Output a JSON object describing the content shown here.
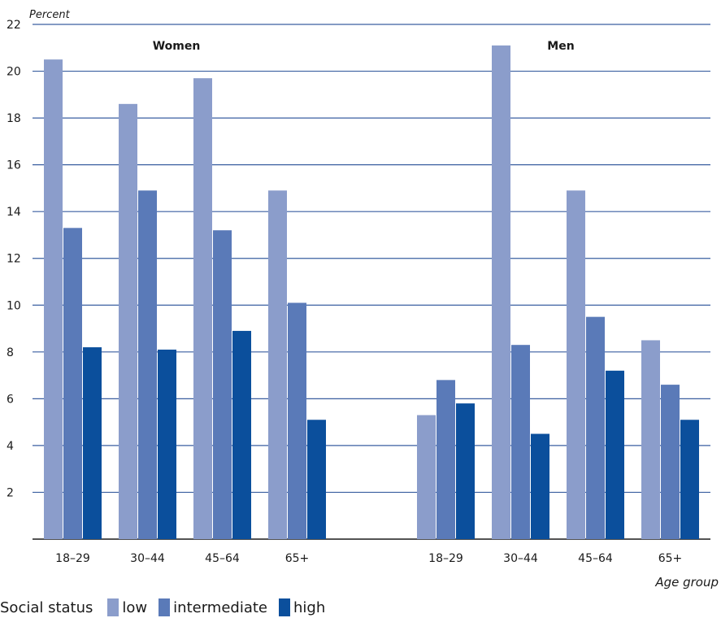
{
  "chart_data": {
    "type": "bar",
    "ylabel": "Percent",
    "xlabel": "Age group",
    "ylim": [
      0,
      22
    ],
    "yticks": [
      "2",
      "4",
      "6",
      "8",
      "10",
      "12",
      "14",
      "16",
      "18",
      "20",
      "22"
    ],
    "grid": true,
    "legend_title": "Social status",
    "legend_position": "bottom-left",
    "panels": [
      {
        "title": "Women",
        "categories": [
          "18–29",
          "30–44",
          "45–64",
          "65+"
        ],
        "series": [
          {
            "name": "low",
            "values": [
              20.5,
              18.6,
              19.7,
              14.9
            ]
          },
          {
            "name": "intermediate",
            "values": [
              13.3,
              14.9,
              13.2,
              10.1
            ]
          },
          {
            "name": "high",
            "values": [
              8.2,
              8.1,
              8.9,
              5.1
            ]
          }
        ]
      },
      {
        "title": "Men",
        "categories": [
          "18–29",
          "30–44",
          "45–64",
          "65+"
        ],
        "series": [
          {
            "name": "low",
            "values": [
              5.3,
              21.1,
              14.9,
              8.5
            ]
          },
          {
            "name": "intermediate",
            "values": [
              6.8,
              8.3,
              9.5,
              6.6
            ]
          },
          {
            "name": "high",
            "values": [
              5.8,
              4.5,
              7.2,
              5.1
            ]
          }
        ]
      }
    ],
    "colors": {
      "low": "#8b9dcb",
      "intermediate": "#5a7ab8",
      "high": "#0b4f9c",
      "grid": "#3a5fa0",
      "axis": "#1a1a1a"
    }
  }
}
